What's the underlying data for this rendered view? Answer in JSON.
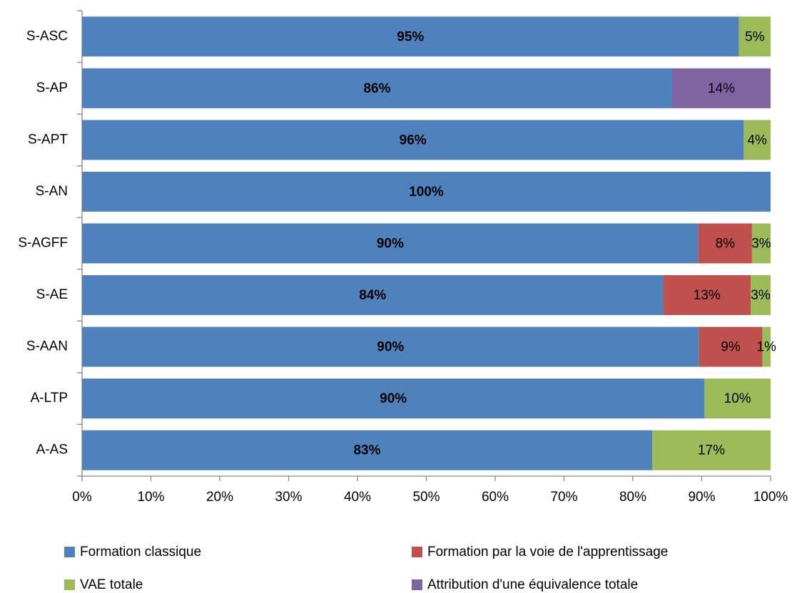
{
  "chart_data": {
    "type": "stacked_barh",
    "categories": [
      "S-ASC",
      "S-AP",
      "S-APT",
      "S-AN",
      "S-AGFF",
      "S-AE",
      "S-AAN",
      "A-LTP",
      "A-AS"
    ],
    "series": [
      {
        "name": "Formation classique",
        "color": "#4f81bd",
        "values": [
          95.4,
          85.7,
          96.1,
          100,
          89.5,
          84.4,
          89.6,
          90.4,
          82.8
        ],
        "value_labels": [
          "95%",
          "86%",
          "96%",
          "100%",
          "90%",
          "84%",
          "90%",
          "90%",
          "83%"
        ]
      },
      {
        "name": "Formation par la voie de l'apprentissage",
        "color": "#c0504d",
        "values": [
          null,
          null,
          null,
          null,
          7.8,
          12.7,
          9.2,
          null,
          null
        ],
        "value_labels": [
          null,
          null,
          null,
          null,
          "8%",
          "13%",
          "9%",
          null,
          null
        ]
      },
      {
        "name": "VAE totale",
        "color": "#9bbb59",
        "values": [
          4.6,
          null,
          3.9,
          null,
          2.7,
          2.9,
          1.2,
          9.6,
          17.2
        ],
        "value_labels": [
          "5%",
          null,
          "4%",
          null,
          "3%",
          "3%",
          "1%",
          "10%",
          "17%"
        ]
      },
      {
        "name": "Attribution d'une équivalence totale",
        "color": "#8064a2",
        "values": [
          null,
          14.3,
          null,
          null,
          null,
          null,
          null,
          null,
          null
        ],
        "value_labels": [
          null,
          "14%",
          null,
          null,
          null,
          null,
          null,
          null,
          null
        ]
      }
    ],
    "xlim": [
      0,
      100
    ],
    "xticks": [
      {
        "value": 0,
        "label": "0%"
      },
      {
        "value": 10,
        "label": "10%"
      },
      {
        "value": 20,
        "label": "20%"
      },
      {
        "value": 30,
        "label": "30%"
      },
      {
        "value": 40,
        "label": "40%"
      },
      {
        "value": 50,
        "label": "50%"
      },
      {
        "value": 60,
        "label": "60%"
      },
      {
        "value": 70,
        "label": "70%"
      },
      {
        "value": 80,
        "label": "80%"
      },
      {
        "value": 90,
        "label": "90%"
      },
      {
        "value": 100,
        "label": "100%"
      }
    ],
    "legend": "bottom"
  }
}
